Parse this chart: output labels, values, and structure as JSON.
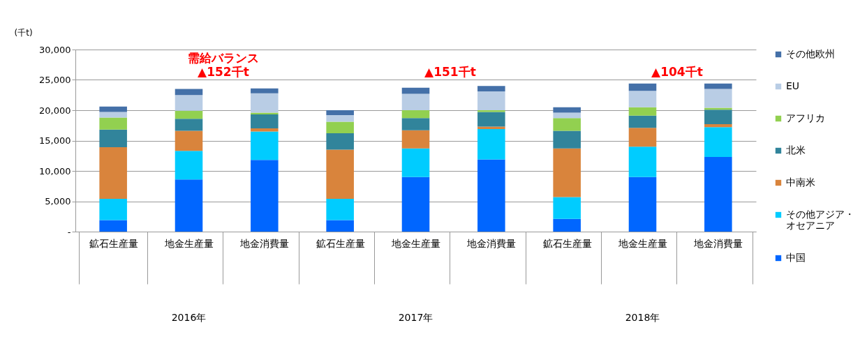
{
  "chart_data": {
    "type": "bar",
    "stacked": true,
    "ylabel": "(千t)",
    "categories": [
      "鉱石生産量",
      "地金生産量",
      "地金消費量",
      "鉱石生産量",
      "地金生産量",
      "地金消費量",
      "鉱石生産量",
      "地金生産量",
      "地金消費量"
    ],
    "series": [
      {
        "name": "中国",
        "color": "#0066ff",
        "values": [
          1900,
          8600,
          11800,
          1900,
          9000,
          11900,
          2100,
          9000,
          12300
        ]
      },
      {
        "name": "その他アジア・オセアニア",
        "color": "#00ccff",
        "values": [
          3500,
          4700,
          4700,
          3500,
          4700,
          5000,
          3600,
          5000,
          4900
        ]
      },
      {
        "name": "中南米",
        "color": "#d9843c",
        "values": [
          8500,
          3300,
          500,
          8100,
          3000,
          400,
          8000,
          3100,
          500
        ]
      },
      {
        "name": "北米",
        "color": "#31849b",
        "values": [
          2900,
          2000,
          2300,
          2700,
          2000,
          2400,
          2900,
          2000,
          2400
        ]
      },
      {
        "name": "アフリカ",
        "color": "#92d050",
        "values": [
          2000,
          1300,
          300,
          1900,
          1300,
          300,
          2100,
          1400,
          300
        ]
      },
      {
        "name": "EU",
        "color": "#b9cde5",
        "values": [
          900,
          2600,
          3200,
          1100,
          2700,
          3100,
          900,
          2700,
          3100
        ]
      },
      {
        "name": "その他欧州",
        "color": "#4470a8",
        "values": [
          900,
          1000,
          800,
          800,
          1000,
          900,
          900,
          1200,
          900
        ]
      }
    ],
    "ylim": [
      0,
      30000
    ],
    "yticks": [
      {
        "value": 0,
        "label": "-"
      },
      {
        "value": 5000,
        "label": "5,000"
      },
      {
        "value": 10000,
        "label": "10,000"
      },
      {
        "value": 15000,
        "label": "15,000"
      },
      {
        "value": 20000,
        "label": "20,000"
      },
      {
        "value": 25000,
        "label": "25,000"
      },
      {
        "value": 30000,
        "label": "30,000"
      }
    ],
    "grid": "y",
    "legend": "right",
    "annotations": [
      "需給バランス",
      "▲152千t",
      "▲151千t",
      "▲104千t",
      "2016年",
      "2017年",
      "2018年"
    ]
  }
}
